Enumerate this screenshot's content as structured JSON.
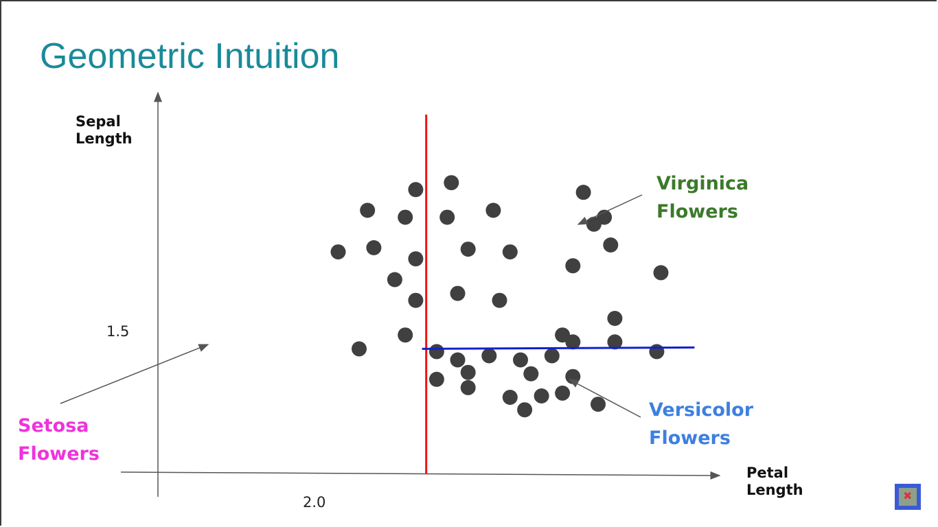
{
  "slide": {
    "title": "Geometric Intuition"
  },
  "chart_data": {
    "type": "scatter",
    "xlabel": [
      "Petal",
      "Length"
    ],
    "ylabel": [
      "Sepal",
      "Length"
    ],
    "x_ticks": [
      "2.0"
    ],
    "y_ticks": [
      "1.5"
    ],
    "xlim": [
      0.72,
      3.4
    ],
    "ylim": [
      0.6,
      3.35
    ],
    "threshold_lines": [
      {
        "orientation": "vertical",
        "x": 2.0,
        "color": "#ee1111"
      },
      {
        "orientation": "horizontal",
        "y": 1.5,
        "x_from": 1.98,
        "x_to": 3.28,
        "color": "#1020d0"
      }
    ],
    "points": [
      [
        1.95,
        2.65
      ],
      [
        2.12,
        2.7
      ],
      [
        1.72,
        2.5
      ],
      [
        1.9,
        2.45
      ],
      [
        2.1,
        2.45
      ],
      [
        2.32,
        2.5
      ],
      [
        1.58,
        2.2
      ],
      [
        1.75,
        2.23
      ],
      [
        1.95,
        2.15
      ],
      [
        2.2,
        2.22
      ],
      [
        2.4,
        2.2
      ],
      [
        1.85,
        2.0
      ],
      [
        1.95,
        1.85
      ],
      [
        1.68,
        1.5
      ],
      [
        1.9,
        1.6
      ],
      [
        2.15,
        1.9
      ],
      [
        2.35,
        1.85
      ],
      [
        2.05,
        1.48
      ],
      [
        2.15,
        1.42
      ],
      [
        2.3,
        1.45
      ],
      [
        2.45,
        1.42
      ],
      [
        2.65,
        1.6
      ],
      [
        2.7,
        2.1
      ],
      [
        2.8,
        2.4
      ],
      [
        2.75,
        2.63
      ],
      [
        2.85,
        2.45
      ],
      [
        2.88,
        2.25
      ],
      [
        3.12,
        2.05
      ],
      [
        2.9,
        1.72
      ],
      [
        3.1,
        1.48
      ],
      [
        2.6,
        1.45
      ],
      [
        2.7,
        1.55
      ],
      [
        2.9,
        1.55
      ],
      [
        2.2,
        1.33
      ],
      [
        2.5,
        1.32
      ],
      [
        2.05,
        1.28
      ],
      [
        2.2,
        1.22
      ],
      [
        2.4,
        1.15
      ],
      [
        2.55,
        1.16
      ],
      [
        2.7,
        1.3
      ],
      [
        2.65,
        1.18
      ],
      [
        2.47,
        1.06
      ],
      [
        2.82,
        1.1
      ]
    ],
    "point_color": "#404040",
    "annotations": [
      {
        "label": [
          "Virginica",
          "Flowers"
        ],
        "color": "#3a7a2a"
      },
      {
        "label": [
          "Versicolor",
          "Flowers"
        ],
        "color": "#3e7fe0"
      },
      {
        "label": [
          "Setosa",
          "Flowers"
        ],
        "color": "#ee33dd"
      }
    ],
    "arrow_color": "#555555"
  }
}
